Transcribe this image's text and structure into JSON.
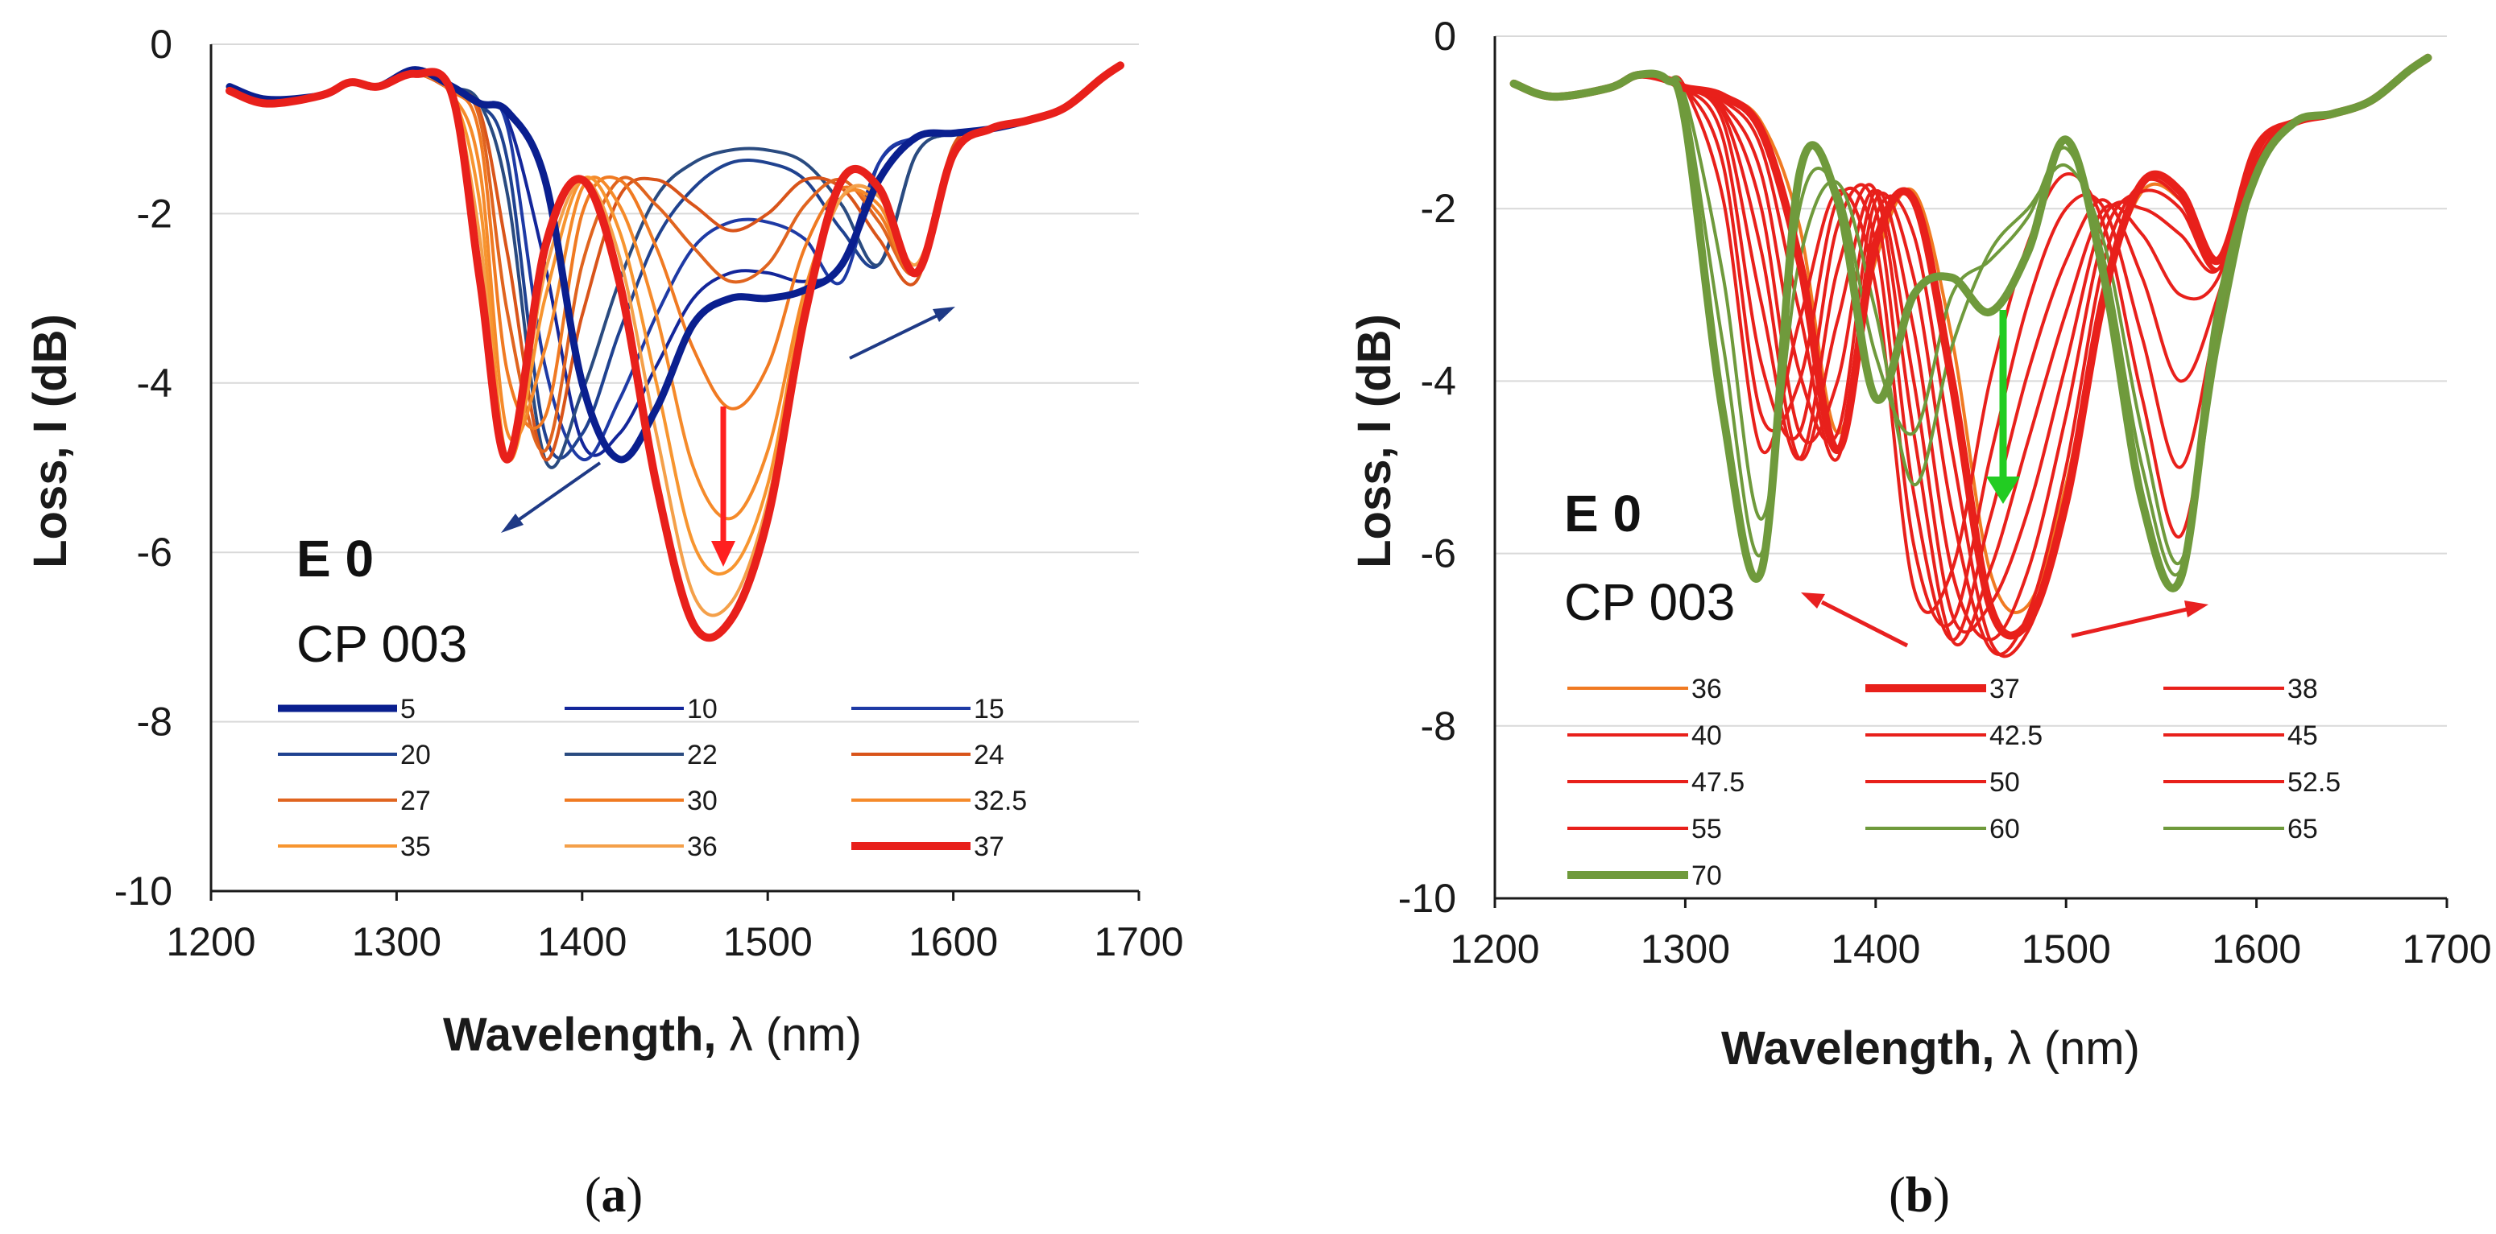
{
  "chart_data": [
    {
      "type": "line",
      "panel_label": "a",
      "xlabel_bold": "Wavelength,",
      "xlabel_rest": " λ (nm)",
      "ylabel": "Loss, I (dB)",
      "xlim": [
        1200,
        1700
      ],
      "ylim": [
        -10,
        0
      ],
      "xticks": [
        "1200",
        "1300",
        "1400",
        "1500",
        "1600",
        "1700"
      ],
      "yticks": [
        "0",
        "-2",
        "-4",
        "-6",
        "-8",
        "-10"
      ],
      "annotation_title": "E 0",
      "annotation_subtitle": "CP 003",
      "x": [
        1210,
        1230,
        1260,
        1275,
        1290,
        1310,
        1330,
        1345,
        1360,
        1380,
        1400,
        1420,
        1440,
        1460,
        1480,
        1500,
        1520,
        1540,
        1560,
        1580,
        1600,
        1620,
        1640,
        1660,
        1680,
        1690
      ],
      "series": [
        {
          "name": "5",
          "color": "#0a1f8f",
          "width": 9,
          "values": [
            -0.5,
            -0.65,
            -0.6,
            -0.45,
            -0.5,
            -0.3,
            -0.5,
            -0.7,
            -0.8,
            -1.6,
            -4.0,
            -4.9,
            -4.3,
            -3.3,
            -3.0,
            -3.0,
            -2.9,
            -2.6,
            -1.6,
            -1.1,
            -1.05,
            -1.0,
            -0.9,
            -0.75,
            -0.4,
            -0.25
          ]
        },
        {
          "name": "10",
          "color": "#13269a",
          "width": 4,
          "values": [
            -0.5,
            -0.65,
            -0.6,
            -0.45,
            -0.5,
            -0.3,
            -0.5,
            -0.7,
            -0.9,
            -2.6,
            -4.7,
            -4.6,
            -3.8,
            -3.0,
            -2.7,
            -2.7,
            -2.8,
            -2.6,
            -1.4,
            -1.1,
            -1.05,
            -1.0,
            -0.9,
            -0.75,
            -0.4,
            -0.25
          ]
        },
        {
          "name": "15",
          "color": "#1e3aa5",
          "width": 4,
          "values": [
            -0.5,
            -0.65,
            -0.6,
            -0.45,
            -0.5,
            -0.3,
            -0.5,
            -0.7,
            -1.0,
            -3.8,
            -4.9,
            -4.2,
            -3.2,
            -2.4,
            -2.1,
            -2.1,
            -2.3,
            -2.8,
            -1.4,
            -1.1,
            -1.05,
            -1.0,
            -0.9,
            -0.75,
            -0.4,
            -0.25
          ]
        },
        {
          "name": "20",
          "color": "#1f4290",
          "width": 4,
          "values": [
            -0.5,
            -0.65,
            -0.6,
            -0.45,
            -0.5,
            -0.3,
            -0.5,
            -0.7,
            -1.4,
            -4.6,
            -4.6,
            -3.4,
            -2.3,
            -1.7,
            -1.4,
            -1.4,
            -1.6,
            -2.2,
            -2.6,
            -1.3,
            -1.05,
            -1.0,
            -0.9,
            -0.75,
            -0.4,
            -0.25
          ]
        },
        {
          "name": "22",
          "color": "#2a4b80",
          "width": 4,
          "values": [
            -0.5,
            -0.65,
            -0.6,
            -0.45,
            -0.5,
            -0.3,
            -0.5,
            -0.7,
            -1.8,
            -4.9,
            -4.1,
            -2.8,
            -1.8,
            -1.4,
            -1.25,
            -1.25,
            -1.4,
            -1.9,
            -2.6,
            -1.3,
            -1.05,
            -1.0,
            -0.9,
            -0.75,
            -0.4,
            -0.25
          ]
        },
        {
          "name": "24",
          "color": "#d9541a",
          "width": 4,
          "values": [
            -0.55,
            -0.7,
            -0.6,
            -0.45,
            -0.5,
            -0.35,
            -0.55,
            -0.8,
            -2.5,
            -4.9,
            -3.2,
            -1.8,
            -1.6,
            -1.9,
            -2.2,
            -2.0,
            -1.6,
            -1.7,
            -2.3,
            -2.8,
            -1.2,
            -1.0,
            -0.9,
            -0.75,
            -0.4,
            -0.25
          ]
        },
        {
          "name": "27",
          "color": "#e0641f",
          "width": 4,
          "values": [
            -0.55,
            -0.7,
            -0.6,
            -0.45,
            -0.5,
            -0.35,
            -0.55,
            -0.9,
            -3.2,
            -4.8,
            -2.6,
            -1.6,
            -1.9,
            -2.4,
            -2.8,
            -2.6,
            -1.9,
            -1.6,
            -2.1,
            -2.7,
            -1.3,
            -1.0,
            -0.9,
            -0.75,
            -0.4,
            -0.25
          ]
        },
        {
          "name": "30",
          "color": "#f07a22",
          "width": 4,
          "values": [
            -0.55,
            -0.7,
            -0.6,
            -0.45,
            -0.5,
            -0.35,
            -0.55,
            -1.1,
            -3.9,
            -4.4,
            -2.0,
            -1.6,
            -2.4,
            -3.6,
            -4.3,
            -3.8,
            -2.4,
            -1.7,
            -2.0,
            -2.7,
            -1.3,
            -1.0,
            -0.9,
            -0.75,
            -0.4,
            -0.25
          ]
        },
        {
          "name": "32.5",
          "color": "#f58a2a",
          "width": 4,
          "values": [
            -0.55,
            -0.7,
            -0.6,
            -0.45,
            -0.5,
            -0.35,
            -0.6,
            -1.5,
            -4.6,
            -3.6,
            -1.7,
            -1.9,
            -3.2,
            -5.0,
            -5.6,
            -4.8,
            -2.9,
            -1.8,
            -1.9,
            -2.7,
            -1.3,
            -1.0,
            -0.9,
            -0.75,
            -0.4,
            -0.25
          ]
        },
        {
          "name": "35",
          "color": "#f7952f",
          "width": 4,
          "values": [
            -0.55,
            -0.7,
            -0.6,
            -0.45,
            -0.5,
            -0.35,
            -0.6,
            -1.9,
            -4.9,
            -3.0,
            -1.6,
            -2.2,
            -4.0,
            -5.9,
            -6.2,
            -5.2,
            -3.0,
            -1.8,
            -1.8,
            -2.6,
            -1.3,
            -1.0,
            -0.9,
            -0.75,
            -0.4,
            -0.25
          ]
        },
        {
          "name": "36",
          "color": "#f4a04a",
          "width": 4,
          "values": [
            -0.55,
            -0.7,
            -0.6,
            -0.45,
            -0.5,
            -0.35,
            -0.6,
            -2.3,
            -4.9,
            -2.7,
            -1.6,
            -2.5,
            -4.6,
            -6.5,
            -6.6,
            -5.4,
            -3.1,
            -1.8,
            -1.8,
            -2.6,
            -1.3,
            -1.0,
            -0.9,
            -0.75,
            -0.4,
            -0.25
          ]
        },
        {
          "name": "37",
          "color": "#e8201b",
          "width": 10,
          "values": [
            -0.55,
            -0.7,
            -0.6,
            -0.45,
            -0.5,
            -0.35,
            -0.6,
            -2.8,
            -4.9,
            -2.4,
            -1.6,
            -2.8,
            -5.2,
            -6.85,
            -6.8,
            -5.6,
            -3.2,
            -1.6,
            -1.7,
            -2.7,
            -1.3,
            -1.0,
            -0.9,
            -0.75,
            -0.4,
            -0.25
          ]
        }
      ]
    },
    {
      "type": "line",
      "panel_label": "b",
      "xlabel_bold": "Wavelength,",
      "xlabel_rest": " λ (nm)",
      "ylabel": "Loss, I (dB)",
      "xlim": [
        1200,
        1700
      ],
      "ylim": [
        -10,
        0
      ],
      "xticks": [
        "1200",
        "1300",
        "1400",
        "1500",
        "1600",
        "1700"
      ],
      "yticks": [
        "0",
        "-2",
        "-4",
        "-6",
        "-8",
        "-10"
      ],
      "annotation_title": "E 0",
      "annotation_subtitle": "CP 003",
      "x": [
        1210,
        1230,
        1260,
        1275,
        1290,
        1300,
        1320,
        1340,
        1360,
        1380,
        1400,
        1420,
        1440,
        1460,
        1480,
        1500,
        1520,
        1540,
        1560,
        1580,
        1600,
        1620,
        1640,
        1660,
        1680,
        1690
      ],
      "series": [
        {
          "name": "36",
          "color": "#f07a22",
          "width": 4,
          "values": [
            -0.55,
            -0.7,
            -0.6,
            -0.45,
            -0.5,
            -0.6,
            -0.7,
            -1.0,
            -2.2,
            -4.6,
            -2.6,
            -1.8,
            -3.5,
            -6.2,
            -6.6,
            -5.2,
            -3.0,
            -1.8,
            -1.9,
            -2.6,
            -1.3,
            -1.0,
            -0.9,
            -0.75,
            -0.4,
            -0.25
          ]
        },
        {
          "name": "37",
          "color": "#e8201b",
          "width": 10,
          "values": [
            -0.55,
            -0.7,
            -0.6,
            -0.45,
            -0.5,
            -0.6,
            -0.7,
            -1.1,
            -2.6,
            -4.8,
            -2.4,
            -1.9,
            -4.0,
            -6.6,
            -6.8,
            -5.4,
            -3.0,
            -1.7,
            -1.8,
            -2.6,
            -1.3,
            -1.0,
            -0.9,
            -0.75,
            -0.4,
            -0.25
          ]
        },
        {
          "name": "38",
          "color": "#e8201b",
          "width": 4,
          "values": [
            -0.55,
            -0.7,
            -0.6,
            -0.45,
            -0.5,
            -0.6,
            -0.75,
            -1.3,
            -3.2,
            -4.9,
            -2.1,
            -2.3,
            -4.8,
            -7.0,
            -6.9,
            -5.4,
            -2.9,
            -1.7,
            -1.8,
            -2.7,
            -1.3,
            -1.0,
            -0.9,
            -0.75,
            -0.4,
            -0.25
          ]
        },
        {
          "name": "40",
          "color": "#e8201b",
          "width": 4,
          "values": [
            -0.55,
            -0.7,
            -0.6,
            -0.45,
            -0.5,
            -0.6,
            -0.8,
            -1.6,
            -3.9,
            -4.6,
            -1.9,
            -2.8,
            -5.5,
            -7.1,
            -6.7,
            -5.0,
            -2.6,
            -1.7,
            -1.9,
            -2.7,
            -1.3,
            -1.0,
            -0.9,
            -0.75,
            -0.4,
            -0.25
          ]
        },
        {
          "name": "42.5",
          "color": "#e8201b",
          "width": 4,
          "values": [
            -0.55,
            -0.7,
            -0.6,
            -0.45,
            -0.5,
            -0.6,
            -0.85,
            -2.0,
            -4.6,
            -4.0,
            -1.8,
            -3.4,
            -6.2,
            -7.0,
            -6.2,
            -4.4,
            -2.3,
            -1.8,
            -2.0,
            -2.7,
            -1.3,
            -1.0,
            -0.9,
            -0.75,
            -0.4,
            -0.25
          ]
        },
        {
          "name": "45",
          "color": "#e8201b",
          "width": 4,
          "values": [
            -0.55,
            -0.7,
            -0.6,
            -0.45,
            -0.5,
            -0.6,
            -0.9,
            -2.5,
            -4.9,
            -3.3,
            -1.8,
            -4.0,
            -6.7,
            -6.6,
            -5.5,
            -3.8,
            -2.1,
            -2.0,
            -2.3,
            -2.7,
            -1.3,
            -1.0,
            -0.9,
            -0.75,
            -0.4,
            -0.25
          ]
        },
        {
          "name": "47.5",
          "color": "#e8201b",
          "width": 4,
          "values": [
            -0.55,
            -0.7,
            -0.6,
            -0.45,
            -0.5,
            -0.6,
            -1.0,
            -3.1,
            -4.9,
            -2.7,
            -1.8,
            -4.6,
            -7.0,
            -6.2,
            -4.7,
            -3.2,
            -2.0,
            -2.3,
            -3.0,
            -2.8,
            -1.3,
            -1.0,
            -0.9,
            -0.75,
            -0.4,
            -0.25
          ]
        },
        {
          "name": "50",
          "color": "#e8201b",
          "width": 4,
          "values": [
            -0.55,
            -0.7,
            -0.6,
            -0.45,
            -0.5,
            -0.6,
            -1.2,
            -3.8,
            -4.6,
            -2.2,
            -2.0,
            -5.3,
            -7.0,
            -5.6,
            -3.9,
            -2.6,
            -1.9,
            -2.8,
            -4.0,
            -3.0,
            -1.3,
            -1.0,
            -0.9,
            -0.75,
            -0.4,
            -0.25
          ]
        },
        {
          "name": "52.5",
          "color": "#e8201b",
          "width": 4,
          "values": [
            -0.55,
            -0.7,
            -0.6,
            -0.45,
            -0.5,
            -0.6,
            -1.5,
            -4.4,
            -4.0,
            -1.9,
            -2.4,
            -5.9,
            -6.8,
            -4.9,
            -3.1,
            -2.0,
            -2.0,
            -3.5,
            -5.0,
            -3.2,
            -1.4,
            -1.0,
            -0.9,
            -0.75,
            -0.4,
            -0.25
          ]
        },
        {
          "name": "55",
          "color": "#e8201b",
          "width": 4,
          "values": [
            -0.55,
            -0.7,
            -0.6,
            -0.45,
            -0.5,
            -0.6,
            -1.9,
            -4.8,
            -3.3,
            -1.8,
            -2.9,
            -6.4,
            -6.2,
            -4.0,
            -2.4,
            -1.6,
            -2.2,
            -4.2,
            -5.8,
            -3.5,
            -1.5,
            -1.0,
            -0.9,
            -0.75,
            -0.4,
            -0.25
          ]
        },
        {
          "name": "60",
          "color": "#6f9a3c",
          "width": 4,
          "values": [
            -0.55,
            -0.7,
            -0.6,
            -0.45,
            -0.5,
            -0.7,
            -2.8,
            -5.6,
            -2.6,
            -1.7,
            -3.2,
            -5.2,
            -3.6,
            -2.5,
            -2.0,
            -1.5,
            -2.4,
            -4.6,
            -6.1,
            -3.6,
            -1.6,
            -1.0,
            -0.9,
            -0.75,
            -0.4,
            -0.25
          ]
        },
        {
          "name": "65",
          "color": "#6f9a3c",
          "width": 4,
          "values": [
            -0.55,
            -0.7,
            -0.6,
            -0.45,
            -0.5,
            -0.8,
            -3.6,
            -6.0,
            -2.0,
            -1.8,
            -3.7,
            -4.6,
            -3.0,
            -2.6,
            -2.1,
            -1.3,
            -2.6,
            -5.0,
            -6.2,
            -3.4,
            -1.6,
            -1.0,
            -0.9,
            -0.75,
            -0.4,
            -0.25
          ]
        },
        {
          "name": "70",
          "color": "#6f9a3c",
          "width": 10,
          "values": [
            -0.55,
            -0.7,
            -0.6,
            -0.45,
            -0.5,
            -1.0,
            -4.4,
            -6.2,
            -1.6,
            -1.9,
            -4.2,
            -3.0,
            -2.8,
            -3.2,
            -2.5,
            -1.2,
            -2.8,
            -5.4,
            -6.3,
            -3.2,
            -1.6,
            -1.0,
            -0.9,
            -0.75,
            -0.4,
            -0.25
          ]
        }
      ]
    }
  ]
}
